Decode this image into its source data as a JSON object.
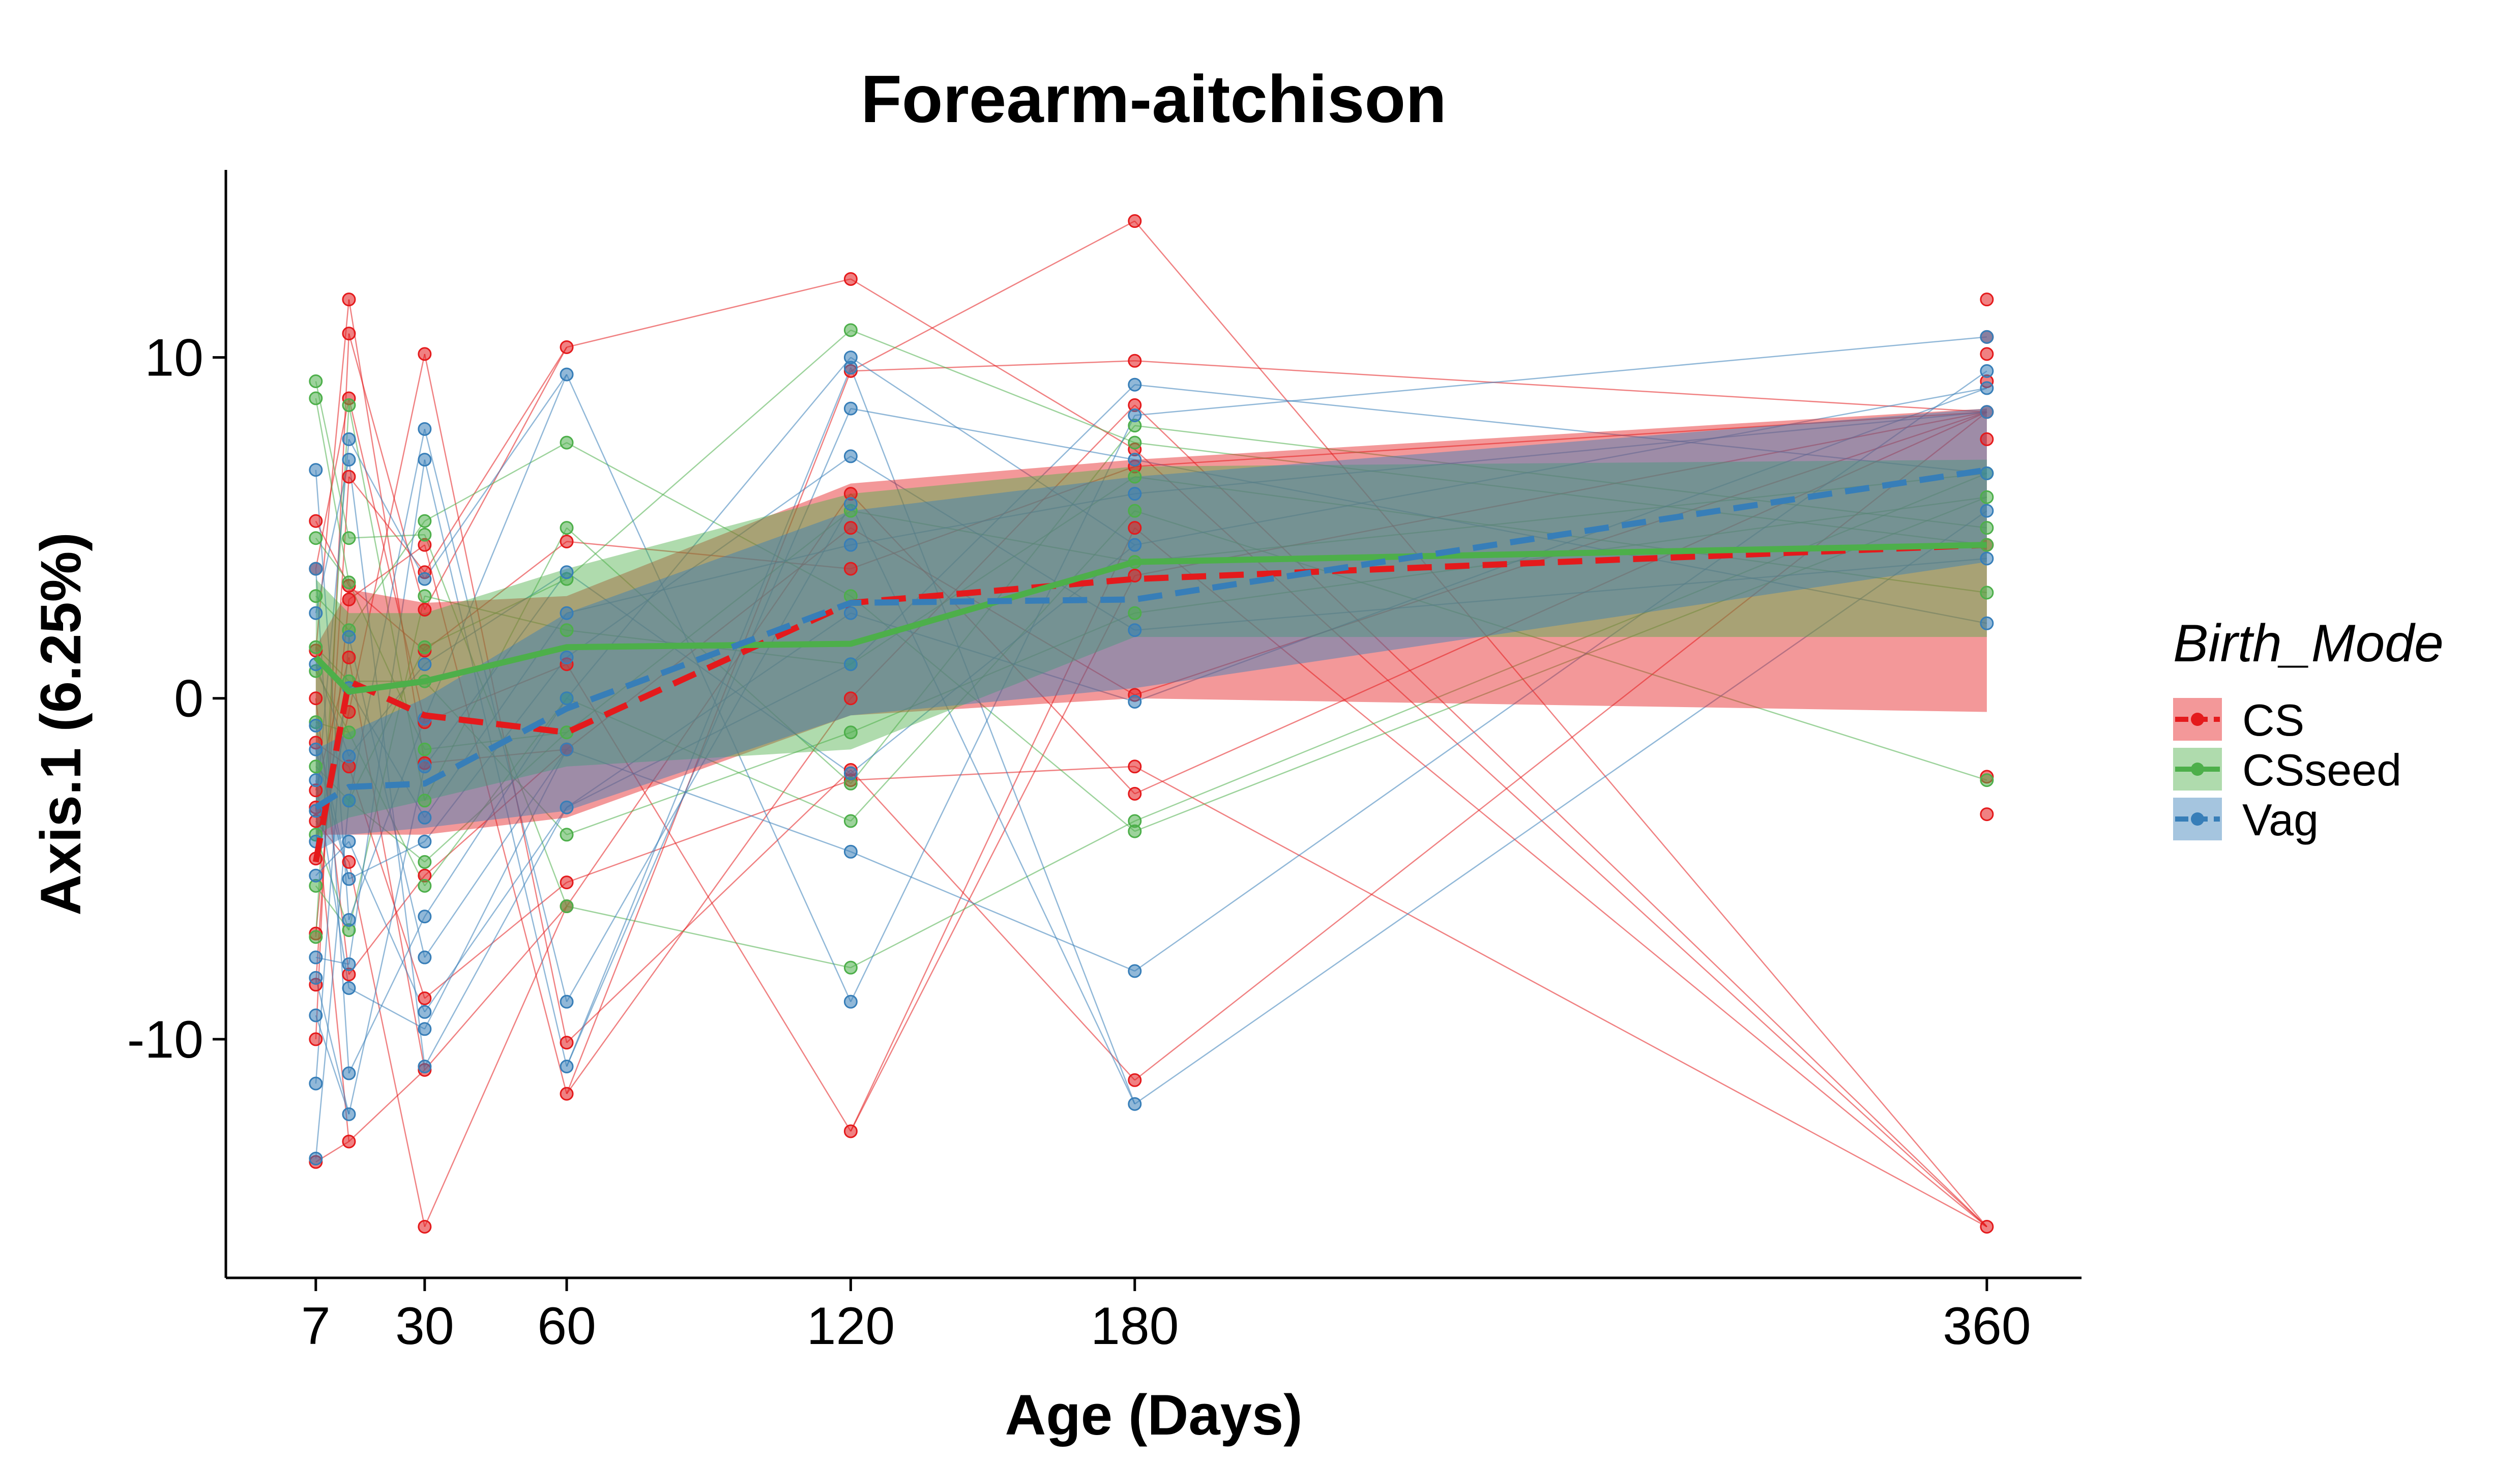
{
  "chart_data": {
    "type": "line",
    "title": "Forearm-aitchison",
    "xlabel": "Age (Days)",
    "ylabel": "Axis.1 (6.25%)",
    "xlim": [
      -12,
      380
    ],
    "ylim": [
      -17,
      15.5
    ],
    "xticks": [
      7,
      30,
      60,
      120,
      180,
      360
    ],
    "yticks": [
      -10,
      0,
      10
    ],
    "grid": false,
    "legend": {
      "title": "Birth_Mode",
      "position": "right",
      "entries": [
        "CS",
        "CSseed",
        "Vag"
      ]
    },
    "series": [
      {
        "name": "CS",
        "color": "#e41a1c",
        "linestyle": "dashed",
        "x": [
          7,
          14,
          30,
          60,
          120,
          180,
          360
        ],
        "mean": [
          -4.8,
          0.5,
          -0.5,
          -1.0,
          2.8,
          3.5,
          4.5
        ],
        "ribbon_lower": [
          -4.0,
          -4.0,
          -4.0,
          -3.5,
          -0.5,
          0.0,
          -0.4
        ],
        "ribbon_upper": [
          1.5,
          3.2,
          2.8,
          3.0,
          6.3,
          7.0,
          8.5
        ],
        "points": {
          "7": [
            -13.6,
            -10.0,
            -8.4,
            -6.9,
            -4.7,
            -3.6,
            -3.2,
            -2.7,
            -1.3,
            0.0,
            1.4,
            3.8,
            5.2
          ],
          "14": [
            -13.0,
            -8.1,
            -4.8,
            -2.0,
            -0.4,
            1.2,
            2.9,
            3.3,
            6.5,
            8.8,
            10.7,
            11.7
          ],
          "30": [
            -15.5,
            -10.9,
            -8.8,
            -5.2,
            -1.9,
            -0.7,
            1.4,
            2.6,
            3.7,
            4.5,
            10.1
          ],
          "60": [
            -11.6,
            -10.1,
            -6.1,
            -5.4,
            -1.5,
            1.0,
            4.6,
            10.3
          ],
          "120": [
            -12.7,
            -2.4,
            -2.1,
            0.0,
            3.8,
            5.0,
            6.0,
            9.6,
            12.3
          ],
          "180": [
            -11.2,
            -2.8,
            -2.0,
            0.1,
            3.6,
            5.0,
            6.8,
            7.3,
            8.6,
            9.9,
            14.0
          ],
          "360": [
            -15.5,
            -3.4,
            -2.3,
            4.5,
            7.6,
            8.4,
            9.3,
            10.1,
            10.6,
            11.7
          ]
        }
      },
      {
        "name": "CSseed",
        "color": "#4daf4a",
        "linestyle": "solid",
        "x": [
          7,
          14,
          30,
          60,
          120,
          180,
          360
        ],
        "mean": [
          1.2,
          0.2,
          0.5,
          1.5,
          1.6,
          4.0,
          4.5
        ],
        "ribbon_lower": [
          -4.0,
          -3.5,
          -3.0,
          -2.0,
          -1.5,
          1.8,
          1.8
        ],
        "ribbon_upper": [
          3.5,
          2.5,
          2.5,
          3.8,
          6.0,
          6.8,
          7.0
        ],
        "points": {
          "7": [
            -7.0,
            -5.5,
            -4.0,
            -2.0,
            -0.7,
            0.8,
            1.5,
            3.0,
            4.7,
            8.8,
            9.3
          ],
          "14": [
            -6.8,
            -3.0,
            -1.0,
            0.5,
            2.0,
            3.4,
            4.7,
            8.6
          ],
          "30": [
            -5.5,
            -4.8,
            -3.0,
            -1.5,
            0.5,
            1.5,
            3.0,
            4.8,
            5.2
          ],
          "60": [
            -6.1,
            -4.0,
            -1.0,
            0.0,
            2.0,
            3.5,
            5.0,
            7.5
          ],
          "120": [
            -7.9,
            -3.6,
            -2.5,
            -1.0,
            1.0,
            3.0,
            5.5,
            10.8
          ],
          "180": [
            -3.9,
            -3.6,
            2.5,
            4.0,
            5.5,
            6.5,
            7.5,
            8.0
          ],
          "360": [
            -2.4,
            3.1,
            4.5,
            5.0,
            5.9,
            6.6
          ]
        }
      },
      {
        "name": "Vag",
        "color": "#377eb8",
        "linestyle": "dashed",
        "x": [
          7,
          14,
          30,
          60,
          120,
          180,
          360
        ],
        "mean": [
          -3.2,
          -2.6,
          -2.5,
          -0.3,
          2.8,
          2.9,
          6.7
        ],
        "ribbon_lower": [
          -4.5,
          -4.0,
          -3.8,
          -3.3,
          -0.5,
          0.3,
          4.0
        ],
        "ribbon_upper": [
          -1.5,
          -1.0,
          0.0,
          2.5,
          5.5,
          6.5,
          8.5
        ],
        "points": {
          "7": [
            -13.5,
            -11.3,
            -9.3,
            -8.2,
            -7.6,
            -5.2,
            -4.2,
            -3.3,
            -2.4,
            -1.5,
            -0.8,
            1.0,
            2.5,
            3.8,
            6.7
          ],
          "14": [
            -12.2,
            -11.0,
            -8.5,
            -7.8,
            -6.5,
            -5.3,
            -4.2,
            -3.0,
            -1.7,
            0.3,
            1.8,
            7.0,
            7.6
          ],
          "30": [
            -10.8,
            -9.7,
            -9.2,
            -7.6,
            -6.4,
            -4.2,
            -3.5,
            -2.0,
            -0.6,
            1.0,
            3.5,
            7.0,
            7.9
          ],
          "60": [
            -10.8,
            -8.9,
            -3.2,
            -1.5,
            0.0,
            1.2,
            2.5,
            3.7,
            9.5
          ],
          "120": [
            -8.9,
            -4.5,
            -2.2,
            1.0,
            2.5,
            4.5,
            5.7,
            7.1,
            8.5,
            9.7,
            10.0
          ],
          "180": [
            -11.9,
            -8.0,
            -0.1,
            2.0,
            4.5,
            6.0,
            7.0,
            8.3,
            9.2
          ],
          "360": [
            2.2,
            4.1,
            5.5,
            6.6,
            8.4,
            9.1,
            9.6,
            10.6
          ]
        }
      }
    ]
  }
}
